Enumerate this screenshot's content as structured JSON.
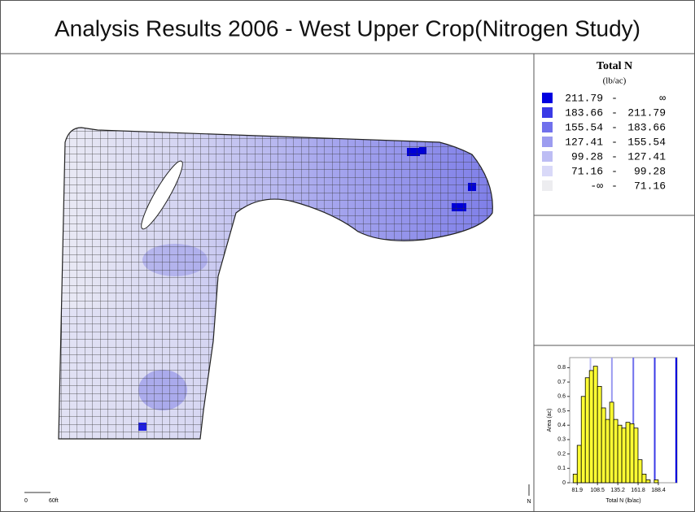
{
  "title": "Analysis Results 2006 - West Upper Crop(Nitrogen Study)",
  "legend": {
    "title": "Total N",
    "unit": "(lb/ac)",
    "separator": "-",
    "items": [
      {
        "from": 211.79,
        "to": "∞",
        "color": "#0000e0"
      },
      {
        "from": 183.66,
        "to": 211.79,
        "color": "#3a3ae6"
      },
      {
        "from": 155.54,
        "to": 183.66,
        "color": "#7070ec"
      },
      {
        "from": 127.41,
        "to": 155.54,
        "color": "#9c9cf0"
      },
      {
        "from": 99.28,
        "to": 127.41,
        "color": "#bdbdf4"
      },
      {
        "from": 71.16,
        "to": 99.28,
        "color": "#d9d9f8"
      },
      {
        "from": "-∞",
        "to": 71.16,
        "color": "#ededf0"
      }
    ]
  },
  "scale_bar": {
    "start": "0",
    "end": "60ft"
  },
  "north": "N",
  "chart_data": {
    "type": "histogram",
    "xlabel": "Total N (lb/ac)",
    "ylabel": "Area (ac)",
    "color": "#ffff33",
    "bins": [
      76.58,
      81.9,
      87.22,
      92.54,
      97.86,
      103.18,
      108.5,
      113.82,
      119.14,
      124.46,
      129.78,
      135.1,
      140.42,
      145.74,
      151.06,
      156.38,
      161.7,
      167.02,
      172.34,
      177.66,
      182.98,
      188.3
    ],
    "values": [
      0.06,
      0.26,
      0.6,
      0.73,
      0.78,
      0.81,
      0.67,
      0.52,
      0.44,
      0.56,
      0.44,
      0.4,
      0.38,
      0.42,
      0.41,
      0.38,
      0.16,
      0.06,
      0.02,
      0,
      0.02
    ],
    "xlim": [
      72,
      213
    ],
    "ylim": [
      0,
      0.87
    ],
    "xticks": [
      81.9,
      108.5,
      135.2,
      161.8,
      188.4
    ],
    "yticks": [
      0,
      0.1,
      0.2,
      0.3,
      0.4,
      0.5,
      0.6,
      0.7,
      0.8
    ]
  }
}
